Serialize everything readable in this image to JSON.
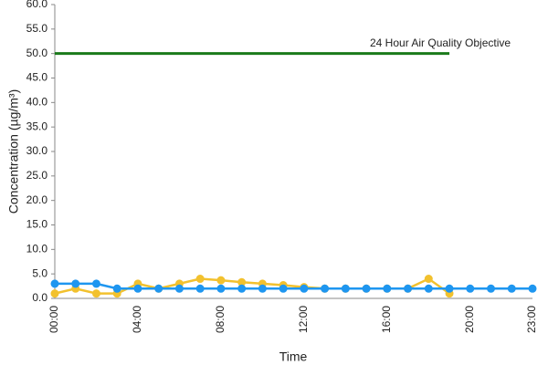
{
  "chart_data": {
    "type": "line",
    "x_label": "Time",
    "y_label": "Concentration (µg/m³)",
    "annotation": "24 Hour Air Quality Objective",
    "categories": [
      "00:00",
      null,
      null,
      null,
      "04:00",
      null,
      null,
      null,
      "08:00",
      null,
      null,
      null,
      "12:00",
      null,
      null,
      null,
      "16:00",
      null,
      null,
      null,
      "20:00",
      null,
      null,
      "23:00"
    ],
    "series": [
      {
        "color": "#1a7a1a",
        "markers": false,
        "values": [
          50,
          50,
          50,
          50,
          50,
          50,
          50,
          50,
          50,
          50,
          50,
          50,
          50,
          50,
          50,
          50,
          50,
          50,
          50,
          50,
          null,
          null,
          null,
          null
        ]
      },
      {
        "color": "#f2c12e",
        "markers": true,
        "values": [
          1,
          2,
          1,
          1,
          3,
          2,
          3,
          4,
          3.7,
          3.3,
          3,
          2.7,
          2.3,
          2,
          2,
          2,
          2,
          2,
          4,
          1,
          null,
          null,
          null,
          null
        ]
      },
      {
        "color": "#1e96f0",
        "markers": true,
        "values": [
          3,
          3,
          3,
          2,
          2,
          2,
          2,
          2,
          2,
          2,
          2,
          2,
          2,
          2,
          2,
          2,
          2,
          2,
          2,
          2,
          2,
          2,
          2,
          2
        ]
      }
    ],
    "ylim": [
      0,
      60
    ],
    "yticks": [
      {
        "value": 0,
        "label": "0.0"
      },
      {
        "value": 5,
        "label": "5.0"
      },
      {
        "value": 10,
        "label": "10.0"
      },
      {
        "value": 15,
        "label": "15.0"
      },
      {
        "value": 20,
        "label": "20.0"
      },
      {
        "value": 25,
        "label": "25.0"
      },
      {
        "value": 30,
        "label": "30.0"
      },
      {
        "value": 35,
        "label": "35.0"
      },
      {
        "value": 40,
        "label": "40.0"
      },
      {
        "value": 45,
        "label": "45.0"
      },
      {
        "value": 50,
        "label": "50.0"
      },
      {
        "value": 55,
        "label": "55.0"
      },
      {
        "value": 60,
        "label": "60.0"
      }
    ]
  }
}
